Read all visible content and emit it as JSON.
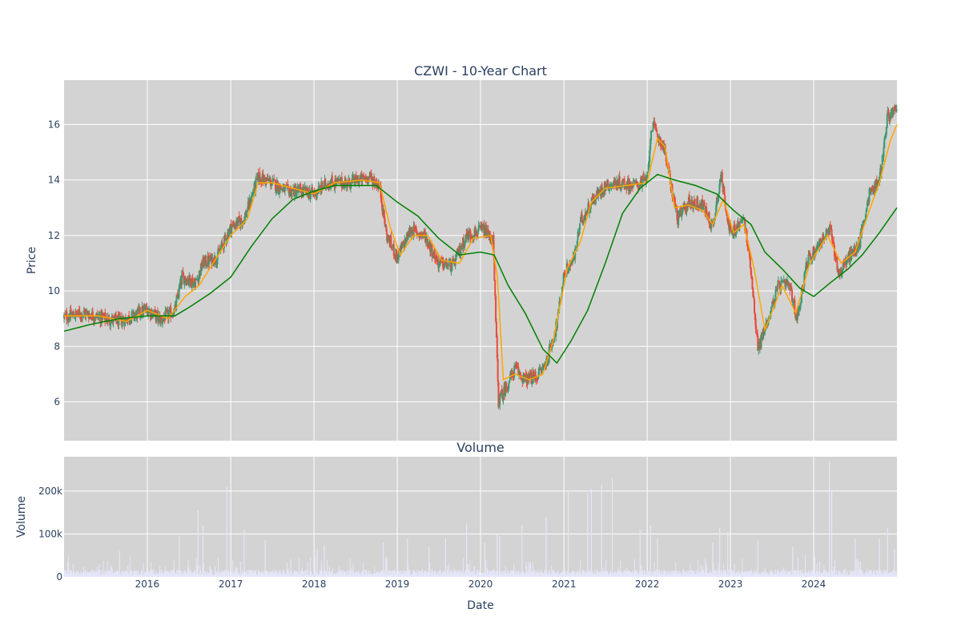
{
  "chart_data": [
    {
      "type": "candlestick",
      "title": "CZWI - 10-Year Chart",
      "ylabel": "Price",
      "ylim": [
        4.6,
        17.6
      ],
      "xlim": [
        "2015-01-01",
        "2024-12-31"
      ],
      "grid": true,
      "background": "#d3d3d3",
      "up_color": "#3d9970",
      "down_color": "#e74c3c",
      "yticks": [
        "6",
        "8",
        "10",
        "12",
        "14",
        "16"
      ],
      "ytick_values": [
        6,
        8,
        10,
        12,
        14,
        16
      ],
      "price_path": [
        [
          "2015-01-01",
          9.05
        ],
        [
          "2015-04-01",
          9.2
        ],
        [
          "2015-07-01",
          9.0
        ],
        [
          "2015-09-01",
          8.9
        ],
        [
          "2015-11-01",
          9.1
        ],
        [
          "2016-01-01",
          9.35
        ],
        [
          "2016-03-01",
          8.95
        ],
        [
          "2016-05-01",
          9.3
        ],
        [
          "2016-06-01",
          10.5
        ],
        [
          "2016-08-01",
          10.3
        ],
        [
          "2016-09-01",
          11.0
        ],
        [
          "2016-11-01",
          11.2
        ],
        [
          "2017-01-01",
          12.3
        ],
        [
          "2017-03-01",
          12.6
        ],
        [
          "2017-05-01",
          14.1
        ],
        [
          "2017-07-01",
          13.9
        ],
        [
          "2017-09-01",
          13.6
        ],
        [
          "2017-11-01",
          13.6
        ],
        [
          "2018-01-01",
          13.5
        ],
        [
          "2018-03-01",
          13.9
        ],
        [
          "2018-06-01",
          13.9
        ],
        [
          "2018-09-01",
          14.1
        ],
        [
          "2018-10-15",
          13.8
        ],
        [
          "2018-11-15",
          12.0
        ],
        [
          "2019-01-01",
          11.2
        ],
        [
          "2019-03-01",
          12.2
        ],
        [
          "2019-05-01",
          12.0
        ],
        [
          "2019-07-01",
          11.0
        ],
        [
          "2019-09-01",
          10.9
        ],
        [
          "2019-11-01",
          12.0
        ],
        [
          "2020-01-15",
          12.2
        ],
        [
          "2020-02-25",
          11.8
        ],
        [
          "2020-03-20",
          6.0
        ],
        [
          "2020-04-20",
          6.5
        ],
        [
          "2020-06-01",
          7.2
        ],
        [
          "2020-07-15",
          6.8
        ],
        [
          "2020-09-01",
          6.9
        ],
        [
          "2020-10-15",
          7.4
        ],
        [
          "2020-12-01",
          8.8
        ],
        [
          "2021-01-01",
          10.6
        ],
        [
          "2021-02-15",
          11.2
        ],
        [
          "2021-03-15",
          12.5
        ],
        [
          "2021-05-01",
          13.2
        ],
        [
          "2021-07-01",
          13.8
        ],
        [
          "2021-09-01",
          13.9
        ],
        [
          "2021-11-01",
          13.8
        ],
        [
          "2022-01-01",
          14.0
        ],
        [
          "2022-01-20",
          16.0
        ],
        [
          "2022-03-15",
          15.2
        ],
        [
          "2022-04-15",
          13.8
        ],
        [
          "2022-05-15",
          12.6
        ],
        [
          "2022-07-01",
          13.2
        ],
        [
          "2022-09-01",
          13.1
        ],
        [
          "2022-10-15",
          12.3
        ],
        [
          "2022-11-20",
          14.2
        ],
        [
          "2023-01-01",
          12.0
        ],
        [
          "2023-03-01",
          12.6
        ],
        [
          "2023-04-01",
          10.8
        ],
        [
          "2023-05-01",
          7.9
        ],
        [
          "2023-06-15",
          9.0
        ],
        [
          "2023-08-01",
          10.2
        ],
        [
          "2023-09-15",
          10.2
        ],
        [
          "2023-10-20",
          9.0
        ],
        [
          "2023-12-01",
          11.0
        ],
        [
          "2024-02-01",
          11.8
        ],
        [
          "2024-03-15",
          12.2
        ],
        [
          "2024-04-20",
          10.6
        ],
        [
          "2024-06-01",
          11.2
        ],
        [
          "2024-07-15",
          11.6
        ],
        [
          "2024-09-01",
          13.5
        ],
        [
          "2024-10-15",
          14.0
        ],
        [
          "2024-11-20",
          16.3
        ],
        [
          "2024-12-31",
          16.5
        ]
      ],
      "series": [
        {
          "name": "",
          "color": "#ffa500",
          "points": [
            [
              "2015-01-01",
              9.1
            ],
            [
              "2015-06-01",
              9.1
            ],
            [
              "2015-10-01",
              8.9
            ],
            [
              "2016-01-01",
              9.3
            ],
            [
              "2016-04-01",
              9.0
            ],
            [
              "2016-06-15",
              9.8
            ],
            [
              "2016-08-15",
              10.2
            ],
            [
              "2016-10-15",
              11.0
            ],
            [
              "2017-01-01",
              12.0
            ],
            [
              "2017-03-15",
              12.6
            ],
            [
              "2017-05-01",
              13.9
            ],
            [
              "2017-07-01",
              13.9
            ],
            [
              "2017-10-01",
              13.7
            ],
            [
              "2018-01-01",
              13.5
            ],
            [
              "2018-04-01",
              13.9
            ],
            [
              "2018-08-01",
              14.0
            ],
            [
              "2018-10-15",
              13.9
            ],
            [
              "2018-12-01",
              12.3
            ],
            [
              "2019-01-15",
              11.3
            ],
            [
              "2019-03-15",
              12.0
            ],
            [
              "2019-05-15",
              12.0
            ],
            [
              "2019-07-15",
              11.1
            ],
            [
              "2019-10-01",
              11.0
            ],
            [
              "2019-12-01",
              11.9
            ],
            [
              "2020-02-15",
              12.0
            ],
            [
              "2020-03-15",
              10.5
            ],
            [
              "2020-04-10",
              6.8
            ],
            [
              "2020-06-01",
              7.0
            ],
            [
              "2020-08-01",
              6.8
            ],
            [
              "2020-10-01",
              7.0
            ],
            [
              "2020-11-15",
              8.2
            ],
            [
              "2021-01-15",
              10.8
            ],
            [
              "2021-03-15",
              11.8
            ],
            [
              "2021-05-01",
              13.2
            ],
            [
              "2021-07-01",
              13.7
            ],
            [
              "2021-10-01",
              13.8
            ],
            [
              "2022-01-01",
              13.9
            ],
            [
              "2022-02-15",
              15.5
            ],
            [
              "2022-03-20",
              15.2
            ],
            [
              "2022-05-01",
              13.0
            ],
            [
              "2022-07-01",
              13.1
            ],
            [
              "2022-09-01",
              12.9
            ],
            [
              "2022-10-15",
              12.4
            ],
            [
              "2022-12-01",
              13.3
            ],
            [
              "2023-01-15",
              12.1
            ],
            [
              "2023-03-01",
              12.4
            ],
            [
              "2023-04-15",
              10.8
            ],
            [
              "2023-06-01",
              8.6
            ],
            [
              "2023-07-15",
              9.5
            ],
            [
              "2023-08-15",
              10.2
            ],
            [
              "2023-10-15",
              9.2
            ],
            [
              "2023-12-15",
              11.0
            ],
            [
              "2024-03-01",
              12.0
            ],
            [
              "2024-05-01",
              11.0
            ],
            [
              "2024-07-01",
              11.4
            ],
            [
              "2024-09-01",
              12.9
            ],
            [
              "2024-10-15",
              13.9
            ],
            [
              "2024-12-01",
              15.4
            ],
            [
              "2024-12-31",
              16.0
            ]
          ]
        },
        {
          "name": "",
          "color": "#008000",
          "points": [
            [
              "2015-01-01",
              8.55
            ],
            [
              "2015-05-01",
              8.8
            ],
            [
              "2015-09-01",
              9.0
            ],
            [
              "2016-01-01",
              9.1
            ],
            [
              "2016-05-01",
              9.1
            ],
            [
              "2016-07-01",
              9.4
            ],
            [
              "2016-10-01",
              9.9
            ],
            [
              "2017-01-01",
              10.5
            ],
            [
              "2017-04-01",
              11.6
            ],
            [
              "2017-07-01",
              12.6
            ],
            [
              "2017-10-01",
              13.3
            ],
            [
              "2018-01-01",
              13.6
            ],
            [
              "2018-04-01",
              13.8
            ],
            [
              "2018-07-01",
              13.8
            ],
            [
              "2018-10-01",
              13.8
            ],
            [
              "2019-01-01",
              13.2
            ],
            [
              "2019-04-01",
              12.7
            ],
            [
              "2019-07-01",
              11.9
            ],
            [
              "2019-10-01",
              11.3
            ],
            [
              "2020-01-01",
              11.4
            ],
            [
              "2020-03-01",
              11.3
            ],
            [
              "2020-05-01",
              10.2
            ],
            [
              "2020-07-15",
              9.2
            ],
            [
              "2020-10-01",
              7.9
            ],
            [
              "2020-12-01",
              7.4
            ],
            [
              "2021-02-01",
              8.2
            ],
            [
              "2021-04-15",
              9.3
            ],
            [
              "2021-07-01",
              11.0
            ],
            [
              "2021-09-15",
              12.8
            ],
            [
              "2021-12-01",
              13.7
            ],
            [
              "2022-02-15",
              14.2
            ],
            [
              "2022-05-01",
              14.0
            ],
            [
              "2022-08-01",
              13.8
            ],
            [
              "2022-11-01",
              13.5
            ],
            [
              "2023-01-15",
              12.9
            ],
            [
              "2023-04-01",
              12.4
            ],
            [
              "2023-06-01",
              11.4
            ],
            [
              "2023-08-15",
              10.8
            ],
            [
              "2023-11-01",
              10.1
            ],
            [
              "2024-01-01",
              9.8
            ],
            [
              "2024-03-15",
              10.3
            ],
            [
              "2024-06-01",
              10.8
            ],
            [
              "2024-08-01",
              11.3
            ],
            [
              "2024-10-15",
              12.1
            ],
            [
              "2024-12-31",
              13.0
            ]
          ]
        }
      ]
    },
    {
      "type": "bar",
      "title": "Volume",
      "xlabel": "Date",
      "ylabel": "Volume",
      "ylim": [
        0,
        280000
      ],
      "grid": true,
      "background": "#d3d3d3",
      "bar_color": "#e6e6fa",
      "yticks": [
        "0",
        "100k",
        "200k"
      ],
      "ytick_values": [
        0,
        100000,
        200000
      ],
      "xticks": [
        "2016",
        "2017",
        "2018",
        "2019",
        "2020",
        "2021",
        "2022",
        "2023",
        "2024"
      ],
      "xtick_values": [
        "2016-01-01",
        "2017-01-01",
        "2018-01-01",
        "2019-01-01",
        "2020-01-01",
        "2021-01-01",
        "2022-01-01",
        "2023-01-01",
        "2024-01-01"
      ],
      "spikes": [
        [
          "2015-09-01",
          60000
        ],
        [
          "2016-05-20",
          95000
        ],
        [
          "2016-08-10",
          155000
        ],
        [
          "2016-09-01",
          120000
        ],
        [
          "2016-12-15",
          210000
        ],
        [
          "2017-03-01",
          110000
        ],
        [
          "2017-06-01",
          85000
        ],
        [
          "2018-01-15",
          65000
        ],
        [
          "2018-02-15",
          75000
        ],
        [
          "2018-11-01",
          80000
        ],
        [
          "2019-02-15",
          90000
        ],
        [
          "2019-05-20",
          70000
        ],
        [
          "2019-08-01",
          90000
        ],
        [
          "2019-11-01",
          125000
        ],
        [
          "2020-01-20",
          80000
        ],
        [
          "2020-03-15",
          100000
        ],
        [
          "2020-03-25",
          95000
        ],
        [
          "2020-07-01",
          120000
        ],
        [
          "2020-10-15",
          140000
        ],
        [
          "2021-01-20",
          200000
        ],
        [
          "2021-04-15",
          195000
        ],
        [
          "2021-05-01",
          205000
        ],
        [
          "2021-06-15",
          215000
        ],
        [
          "2021-08-01",
          230000
        ],
        [
          "2021-12-01",
          110000
        ],
        [
          "2022-01-15",
          120000
        ],
        [
          "2022-02-15",
          90000
        ],
        [
          "2022-10-15",
          80000
        ],
        [
          "2022-11-15",
          115000
        ],
        [
          "2022-12-20",
          105000
        ],
        [
          "2023-05-01",
          85000
        ],
        [
          "2023-10-01",
          70000
        ],
        [
          "2024-03-10",
          270000
        ],
        [
          "2024-03-20",
          200000
        ],
        [
          "2024-07-01",
          90000
        ],
        [
          "2024-10-15",
          90000
        ],
        [
          "2024-11-20",
          115000
        ],
        [
          "2024-12-20",
          65000
        ]
      ]
    }
  ]
}
